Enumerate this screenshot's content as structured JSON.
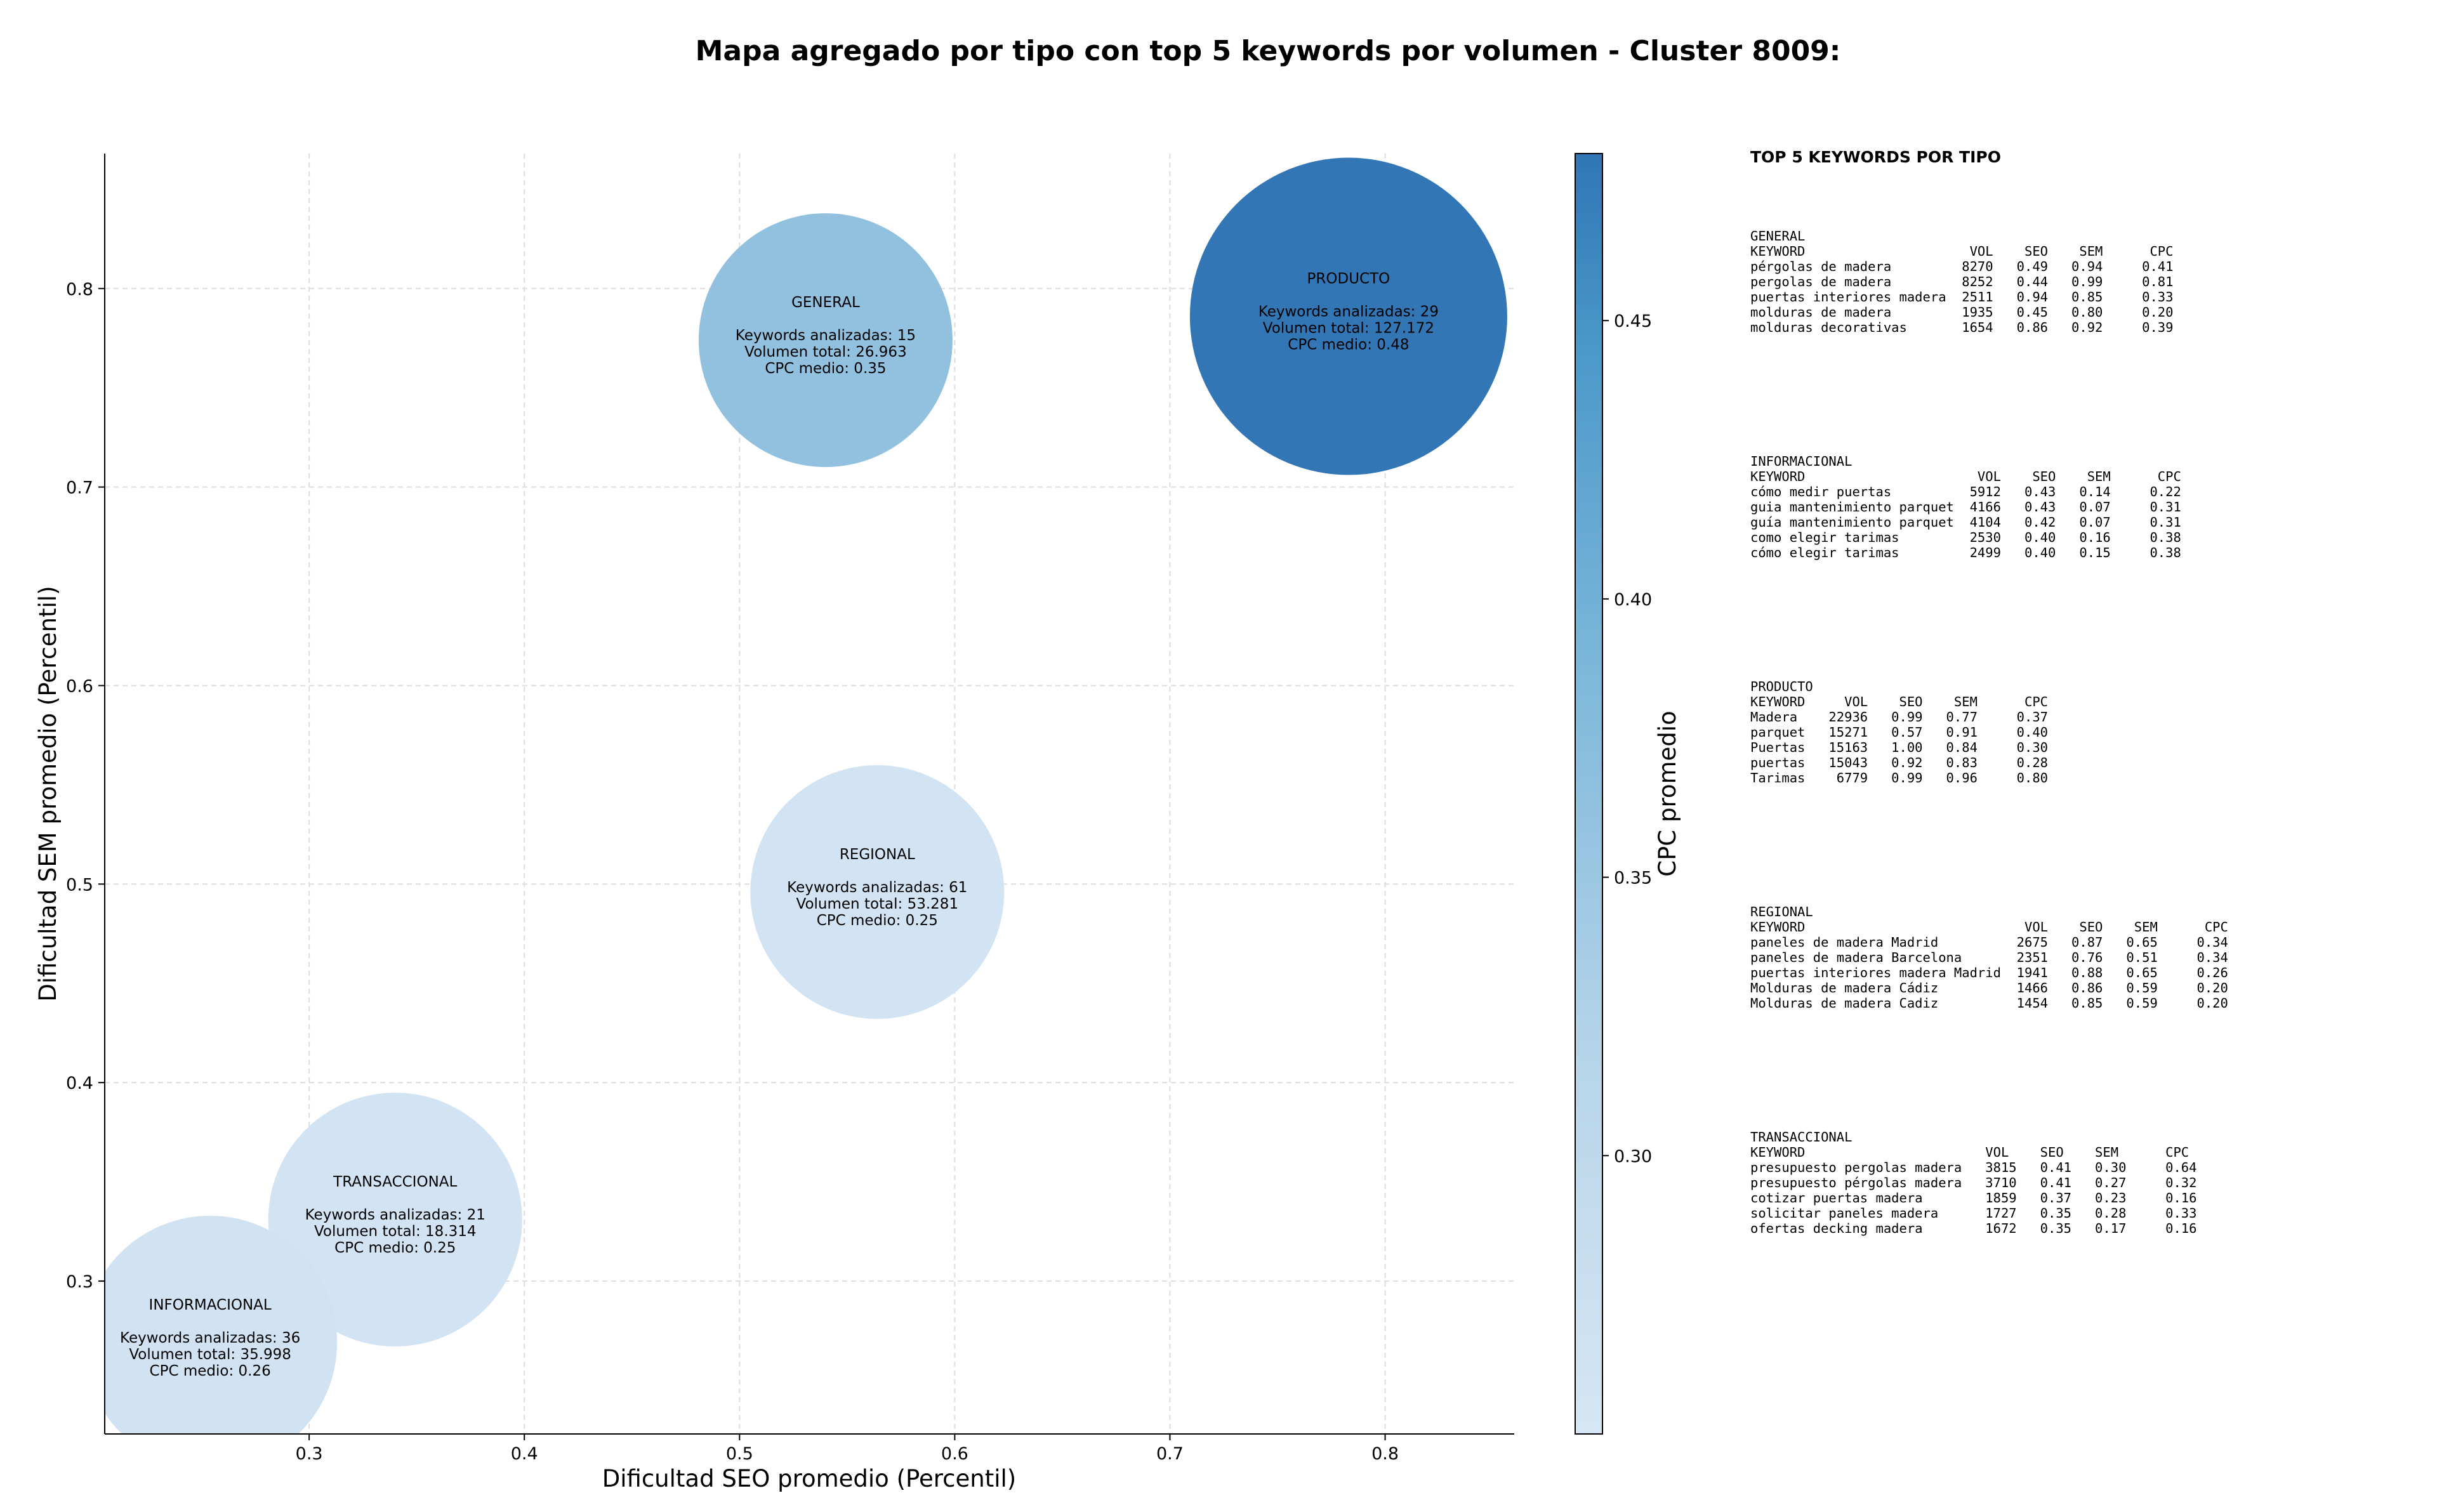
{
  "chart_data": {
    "type": "scatter",
    "title": "Mapa agregado por tipo con top 5 keywords por volumen - Cluster 8009:",
    "xlabel": "Dificultad SEO promedio (Percentil)",
    "ylabel": "Dificultad SEM promedio (Percentil)",
    "xlim": [
      0.205,
      0.86
    ],
    "ylim": [
      0.223,
      0.868
    ],
    "xticks": [
      "0.3",
      "0.4",
      "0.5",
      "0.6",
      "0.7",
      "0.8"
    ],
    "yticks": [
      "0.3",
      "0.4",
      "0.5",
      "0.6",
      "0.7",
      "0.8"
    ],
    "grid": true,
    "colorbar": {
      "label": "CPC promedio",
      "range": [
        0.25,
        0.48
      ],
      "ticks": [
        "0.30",
        "0.35",
        "0.40",
        "0.45"
      ],
      "color_low": "#d0e1f2",
      "color_mid": "#89bedc",
      "color_high": "#2f76b6"
    },
    "points": [
      {
        "type": "GENERAL",
        "x": 0.54,
        "y": 0.774,
        "volume": 26963,
        "color": "#8dbfdd",
        "line2": "Keywords analizadas: 15",
        "line3": "Volumen total: 26.963",
        "line4": "CPC medio: 0.35"
      },
      {
        "type": "PRODUCTO",
        "x": 0.783,
        "y": 0.786,
        "volume": 127172,
        "color": "#2b72b3",
        "line2": "Keywords analizadas: 29",
        "line3": "Volumen total: 127.172",
        "line4": "CPC medio: 0.48"
      },
      {
        "type": "REGIONAL",
        "x": 0.564,
        "y": 0.496,
        "volume": 53281,
        "color": "#d1e2f3",
        "line2": "Keywords analizadas: 61",
        "line3": "Volumen total: 53.281",
        "line4": "CPC medio: 0.25"
      },
      {
        "type": "TRANSACCIONAL",
        "x": 0.34,
        "y": 0.331,
        "volume": 18314,
        "color": "#d1e2f3",
        "line2": "Keywords analizadas: 21",
        "line3": "Volumen total: 18.314",
        "line4": "CPC medio: 0.25"
      },
      {
        "type": "INFORMACIONAL",
        "x": 0.254,
        "y": 0.269,
        "volume": 35998,
        "color": "#cfe1f2",
        "line2": "Keywords analizadas: 36",
        "line3": "Volumen total: 35.998",
        "line4": "CPC medio: 0.26"
      }
    ]
  },
  "tables": {
    "title": "TOP 5 KEYWORDS POR TIPO",
    "blocks": [
      {
        "name": "GENERAL",
        "rows": [
          "GENERAL",
          "KEYWORD                     VOL    SEO    SEM      CPC",
          "pérgolas de madera         8270   0.49   0.94     0.41",
          "pergolas de madera         8252   0.44   0.99     0.81",
          "puertas interiores madera  2511   0.94   0.85     0.33",
          "molduras de madera         1935   0.45   0.80     0.20",
          "molduras decorativas       1654   0.86   0.92     0.39"
        ]
      },
      {
        "name": "INFORMACIONAL",
        "rows": [
          "INFORMACIONAL",
          "KEYWORD                      VOL    SEO    SEM      CPC",
          "cómo medir puertas          5912   0.43   0.14     0.22",
          "guia mantenimiento parquet  4166   0.43   0.07     0.31",
          "guía mantenimiento parquet  4104   0.42   0.07     0.31",
          "como elegir tarimas         2530   0.40   0.16     0.38",
          "cómo elegir tarimas         2499   0.40   0.15     0.38"
        ]
      },
      {
        "name": "PRODUCTO",
        "rows": [
          "PRODUCTO",
          "KEYWORD     VOL    SEO    SEM      CPC",
          "Madera    22936   0.99   0.77     0.37",
          "parquet   15271   0.57   0.91     0.40",
          "Puertas   15163   1.00   0.84     0.30",
          "puertas   15043   0.92   0.83     0.28",
          "Tarimas    6779   0.99   0.96     0.80"
        ]
      },
      {
        "name": "REGIONAL",
        "rows": [
          "REGIONAL",
          "KEYWORD                            VOL    SEO    SEM      CPC",
          "paneles de madera Madrid          2675   0.87   0.65     0.34",
          "paneles de madera Barcelona       2351   0.76   0.51     0.34",
          "puertas interiores madera Madrid  1941   0.88   0.65     0.26",
          "Molduras de madera Cádiz          1466   0.86   0.59     0.20",
          "Molduras de madera Cadiz          1454   0.85   0.59     0.20"
        ]
      },
      {
        "name": "TRANSACCIONAL",
        "rows": [
          "TRANSACCIONAL",
          "KEYWORD                       VOL    SEO    SEM      CPC",
          "presupuesto pergolas madera   3815   0.41   0.30     0.64",
          "presupuesto pérgolas madera   3710   0.41   0.27     0.32",
          "cotizar puertas madera        1859   0.37   0.23     0.16",
          "solicitar paneles madera      1727   0.35   0.28     0.33",
          "ofertas decking madera        1672   0.35   0.17     0.16"
        ]
      }
    ]
  }
}
